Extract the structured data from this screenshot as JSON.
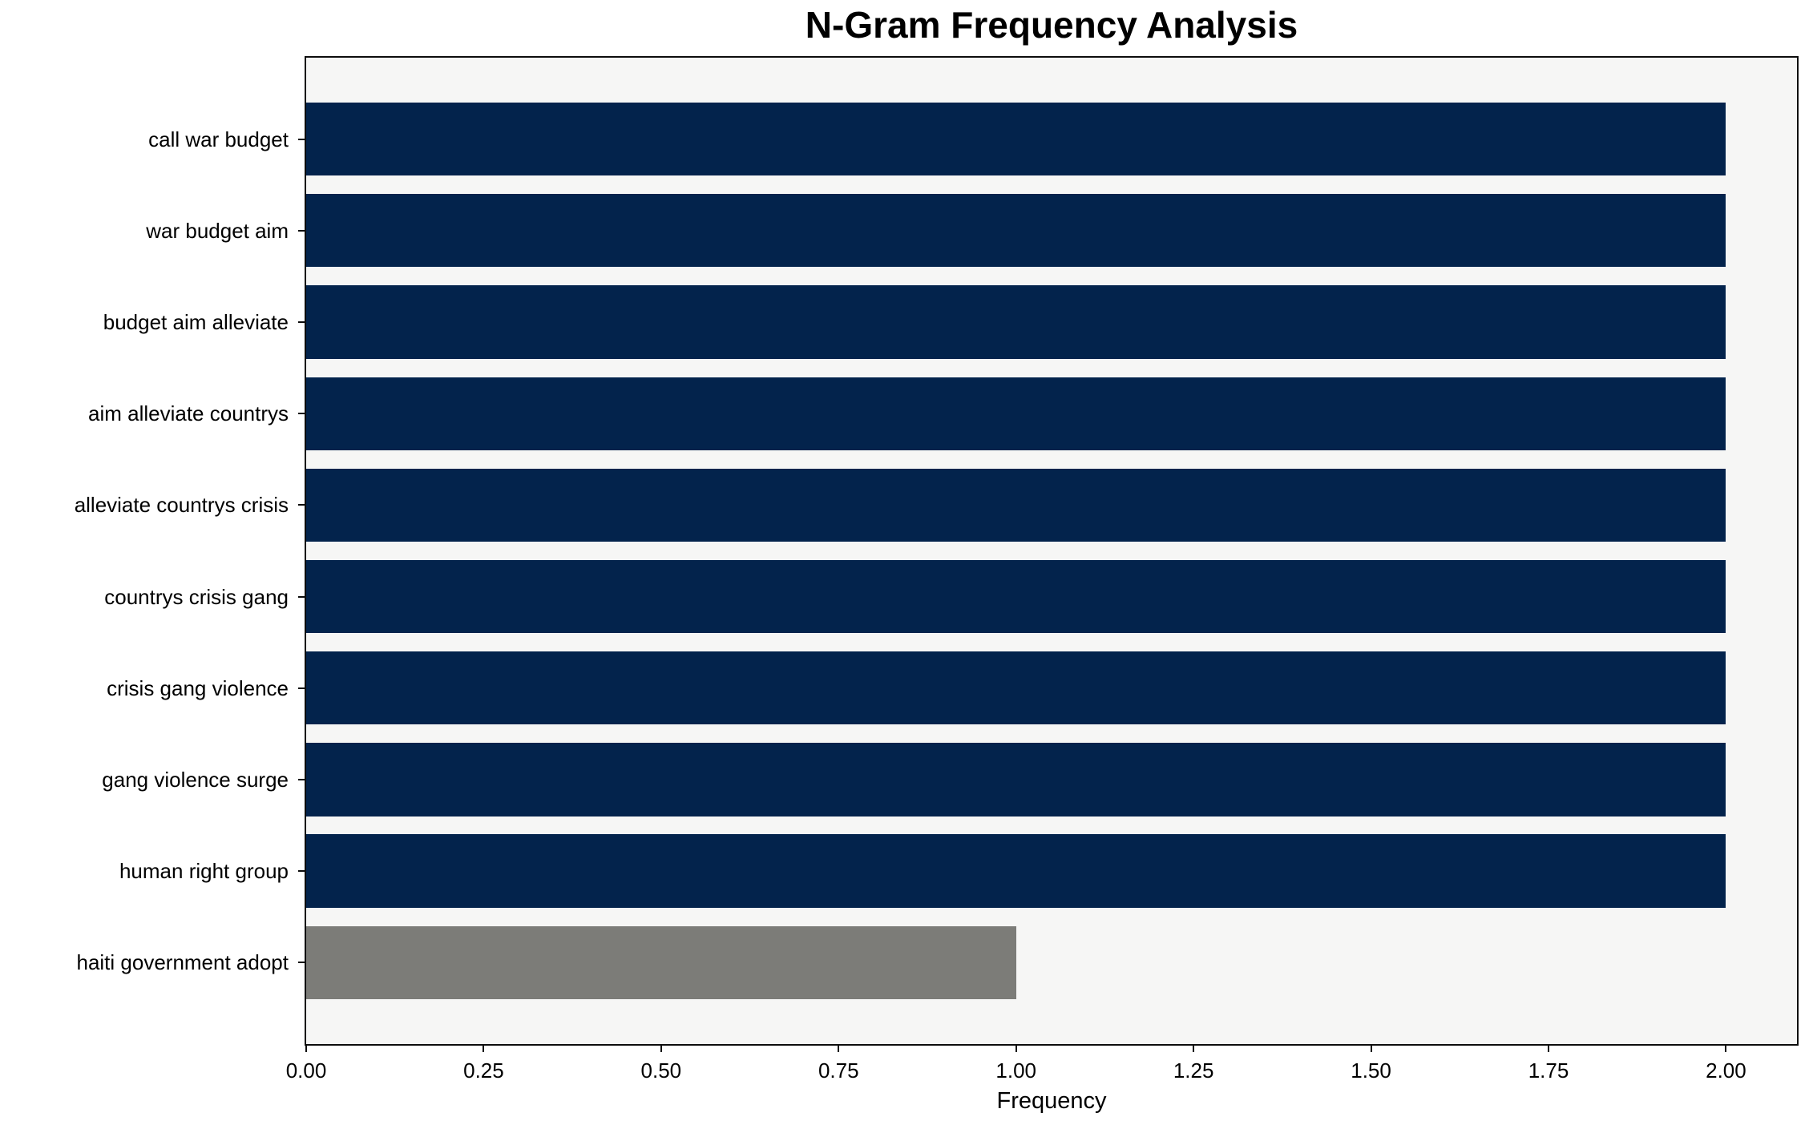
{
  "chart": {
    "title": "N-Gram Frequency Analysis",
    "xlabel": "Frequency"
  },
  "chart_data": {
    "type": "bar",
    "orientation": "horizontal",
    "title": "N-Gram Frequency Analysis",
    "xlabel": "Frequency",
    "ylabel": "",
    "categories": [
      "call war budget",
      "war budget aim",
      "budget aim alleviate",
      "aim alleviate countrys",
      "alleviate countrys crisis",
      "countrys crisis gang",
      "crisis gang violence",
      "gang violence surge",
      "human right group",
      "haiti government adopt"
    ],
    "values": [
      2,
      2,
      2,
      2,
      2,
      2,
      2,
      2,
      2,
      1
    ],
    "bar_colors": [
      "#03234c",
      "#03234c",
      "#03234c",
      "#03234c",
      "#03234c",
      "#03234c",
      "#03234c",
      "#03234c",
      "#03234c",
      "#7c7c78"
    ],
    "xlim": [
      0,
      2.1
    ],
    "xticks": [
      "0.00",
      "0.25",
      "0.50",
      "0.75",
      "1.00",
      "1.25",
      "1.50",
      "1.75",
      "2.00"
    ],
    "grid": false,
    "legend": null,
    "plot_background": "#f6f6f5",
    "figure_background": "#ffffff",
    "colors": {
      "bar_primary": "#03234c",
      "bar_highlight": "#7c7c78",
      "axis": "#0d0d0d"
    }
  }
}
